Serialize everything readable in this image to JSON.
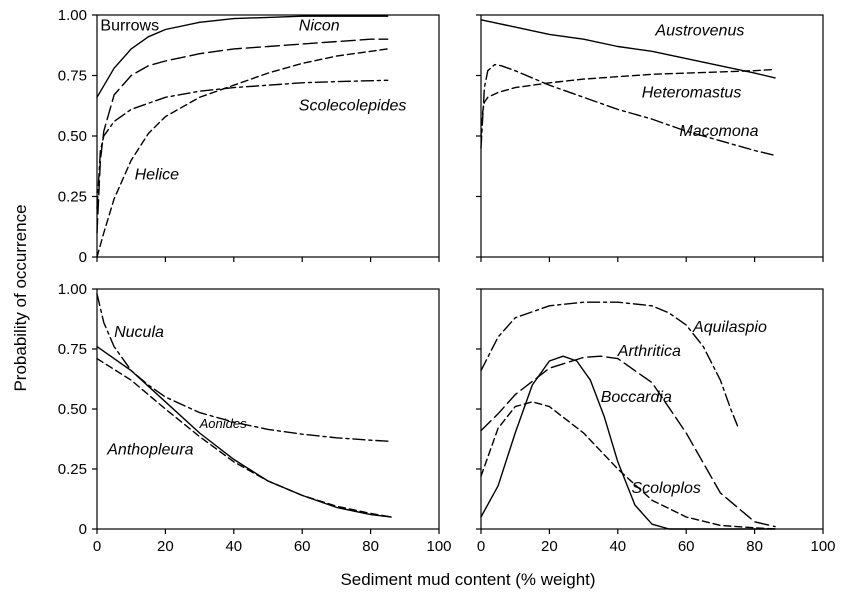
{
  "figure": {
    "xlabel": "Sediment mud content (% weight)",
    "ylabel": "Probability of occurrence"
  },
  "chart_data": [
    {
      "type": "line",
      "panel": "top-left",
      "xlim": [
        0,
        100
      ],
      "ylim": [
        0,
        1
      ],
      "x_ticks": [
        "0",
        "20",
        "40",
        "60",
        "80",
        "100"
      ],
      "y_ticks": [
        "0",
        "0.25",
        "0.50",
        "0.75",
        "1.00"
      ],
      "show_x_tick_labels": false,
      "show_y_tick_labels": true,
      "series": [
        {
          "name": "Burrows",
          "style": "solid",
          "italic": false,
          "x": [
            0,
            5,
            10,
            15,
            20,
            30,
            40,
            50,
            60,
            70,
            80,
            85
          ],
          "y": [
            0.66,
            0.78,
            0.86,
            0.91,
            0.94,
            0.97,
            0.985,
            0.99,
            0.995,
            0.995,
            0.995,
            0.995
          ]
        },
        {
          "name": "Nicon",
          "style": "longdash",
          "italic": true,
          "x": [
            0,
            1,
            2,
            5,
            10,
            15,
            20,
            30,
            40,
            50,
            60,
            70,
            80,
            85
          ],
          "y": [
            0.1,
            0.4,
            0.52,
            0.67,
            0.75,
            0.79,
            0.81,
            0.84,
            0.86,
            0.87,
            0.88,
            0.89,
            0.9,
            0.9
          ]
        },
        {
          "name": "Scolecolepides",
          "style": "dashdot",
          "italic": true,
          "x": [
            0,
            1,
            2,
            5,
            10,
            20,
            30,
            40,
            50,
            60,
            70,
            85
          ],
          "y": [
            0.2,
            0.44,
            0.5,
            0.56,
            0.61,
            0.66,
            0.685,
            0.7,
            0.71,
            0.72,
            0.725,
            0.73
          ]
        },
        {
          "name": "Helice",
          "style": "dash",
          "italic": true,
          "x": [
            0,
            2,
            5,
            10,
            15,
            20,
            30,
            40,
            50,
            60,
            70,
            85
          ],
          "y": [
            0.0,
            0.1,
            0.24,
            0.4,
            0.51,
            0.58,
            0.66,
            0.71,
            0.76,
            0.8,
            0.83,
            0.86
          ]
        }
      ],
      "annotations": [
        "Burrows",
        "Nicon",
        "Scolecolepides",
        "Helice"
      ]
    },
    {
      "type": "line",
      "panel": "top-right",
      "xlim": [
        0,
        100
      ],
      "ylim": [
        0,
        1
      ],
      "x_ticks": [
        "0",
        "20",
        "40",
        "60",
        "80",
        "100"
      ],
      "y_ticks": [
        "0",
        "0.25",
        "0.50",
        "0.75",
        "1.00"
      ],
      "show_x_tick_labels": false,
      "show_y_tick_labels": false,
      "series": [
        {
          "name": "Austrovenus",
          "style": "solid",
          "italic": true,
          "x": [
            0,
            10,
            20,
            30,
            40,
            50,
            60,
            70,
            80,
            86
          ],
          "y": [
            0.98,
            0.95,
            0.92,
            0.9,
            0.87,
            0.85,
            0.82,
            0.79,
            0.76,
            0.74
          ]
        },
        {
          "name": "Heteromastus",
          "style": "dash",
          "italic": true,
          "x": [
            0,
            0.5,
            1,
            2,
            5,
            10,
            20,
            30,
            40,
            50,
            60,
            70,
            80,
            86
          ],
          "y": [
            0.5,
            0.6,
            0.64,
            0.66,
            0.68,
            0.7,
            0.72,
            0.735,
            0.745,
            0.755,
            0.76,
            0.765,
            0.77,
            0.775
          ]
        },
        {
          "name": "Macomona",
          "style": "dashdot",
          "italic": true,
          "x": [
            0,
            1,
            2,
            4,
            6,
            10,
            20,
            30,
            40,
            50,
            60,
            70,
            80,
            86
          ],
          "y": [
            0.45,
            0.7,
            0.77,
            0.795,
            0.79,
            0.77,
            0.71,
            0.66,
            0.61,
            0.57,
            0.52,
            0.48,
            0.44,
            0.42
          ]
        }
      ],
      "annotations": [
        "Austrovenus",
        "Heteromastus",
        "Macomona"
      ]
    },
    {
      "type": "line",
      "panel": "bottom-left",
      "xlim": [
        0,
        100
      ],
      "ylim": [
        0,
        1
      ],
      "x_ticks": [
        "0",
        "20",
        "40",
        "60",
        "80",
        "100"
      ],
      "y_ticks": [
        "0",
        "0.25",
        "0.50",
        "0.75",
        "1.00"
      ],
      "show_x_tick_labels": true,
      "show_y_tick_labels": true,
      "series": [
        {
          "name": "Nucula",
          "style": "dashdot",
          "italic": true,
          "x": [
            0,
            2,
            5,
            10,
            15,
            20,
            30,
            40,
            50,
            60,
            70,
            80,
            86
          ],
          "y": [
            0.98,
            0.86,
            0.76,
            0.66,
            0.6,
            0.55,
            0.485,
            0.445,
            0.415,
            0.395,
            0.38,
            0.37,
            0.365
          ]
        },
        {
          "name": "Aonides",
          "style": "solid",
          "italic": true,
          "small": true,
          "x": [
            0,
            10,
            20,
            30,
            40,
            50,
            60,
            70,
            80,
            86
          ],
          "y": [
            0.76,
            0.66,
            0.53,
            0.4,
            0.29,
            0.2,
            0.14,
            0.09,
            0.06,
            0.05
          ]
        },
        {
          "name": "Anthopleura",
          "style": "dash",
          "italic": true,
          "x": [
            0,
            10,
            20,
            30,
            40,
            50,
            60,
            70,
            80,
            86
          ],
          "y": [
            0.71,
            0.62,
            0.5,
            0.385,
            0.28,
            0.2,
            0.14,
            0.095,
            0.065,
            0.05
          ]
        }
      ],
      "annotations": [
        "Nucula",
        "Aonides",
        "Anthopleura"
      ]
    },
    {
      "type": "line",
      "panel": "bottom-right",
      "xlim": [
        0,
        100
      ],
      "ylim": [
        0,
        1
      ],
      "x_ticks": [
        "0",
        "20",
        "40",
        "60",
        "80",
        "100"
      ],
      "y_ticks": [
        "0",
        "0.25",
        "0.50",
        "0.75",
        "1.00"
      ],
      "show_x_tick_labels": true,
      "show_y_tick_labels": false,
      "series": [
        {
          "name": "Aquilaspio",
          "style": "dashdot",
          "italic": true,
          "x": [
            0,
            5,
            10,
            20,
            30,
            40,
            50,
            55,
            60,
            65,
            70,
            73,
            75
          ],
          "y": [
            0.66,
            0.8,
            0.88,
            0.93,
            0.945,
            0.945,
            0.93,
            0.9,
            0.85,
            0.76,
            0.62,
            0.5,
            0.43
          ]
        },
        {
          "name": "Arthritica",
          "style": "longdash",
          "italic": true,
          "x": [
            0,
            5,
            10,
            20,
            30,
            35,
            40,
            50,
            60,
            70,
            80,
            86
          ],
          "y": [
            0.41,
            0.48,
            0.56,
            0.67,
            0.715,
            0.72,
            0.71,
            0.61,
            0.4,
            0.15,
            0.03,
            0.01
          ]
        },
        {
          "name": "Boccardia",
          "style": "solid",
          "italic": true,
          "x": [
            0,
            5,
            10,
            15,
            20,
            24,
            28,
            32,
            36,
            40,
            45,
            50,
            55,
            60,
            86
          ],
          "y": [
            0.05,
            0.18,
            0.4,
            0.6,
            0.7,
            0.72,
            0.7,
            0.62,
            0.47,
            0.28,
            0.1,
            0.02,
            0.0,
            0.0,
            0.0
          ]
        },
        {
          "name": "Scoloplos",
          "style": "dash",
          "italic": true,
          "x": [
            0,
            5,
            10,
            15,
            20,
            30,
            40,
            50,
            60,
            70,
            80,
            86
          ],
          "y": [
            0.22,
            0.42,
            0.51,
            0.53,
            0.51,
            0.4,
            0.25,
            0.12,
            0.05,
            0.015,
            0.005,
            0.0
          ]
        }
      ],
      "annotations": [
        "Aquilaspio",
        "Arthritica",
        "Boccardia",
        "Scoloplos"
      ]
    }
  ]
}
